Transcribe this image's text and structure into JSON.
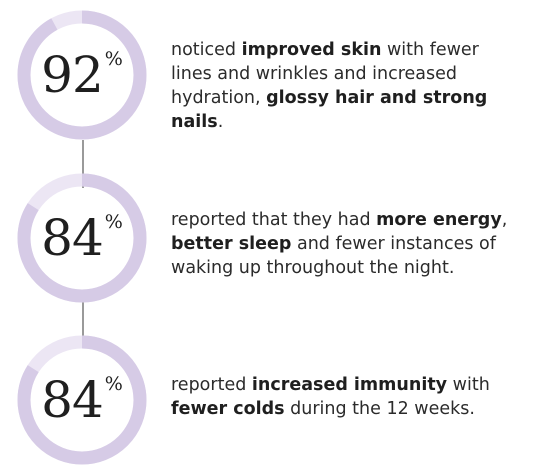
{
  "colors": {
    "ring": "#d6cbe6",
    "ring_fill": "#c2b3da",
    "connector": "#9a9a9a"
  },
  "stats": [
    {
      "value": "92",
      "percent_sign": "%",
      "ring_fill_fraction": 0.92,
      "segments": [
        {
          "text": "noticed ",
          "bold": false
        },
        {
          "text": "improved skin",
          "bold": true
        },
        {
          "text": " with fewer lines and wrinkles and increased hydration, ",
          "bold": false
        },
        {
          "text": "glossy hair and strong nails",
          "bold": true
        },
        {
          "text": ".",
          "bold": false
        }
      ]
    },
    {
      "value": "84",
      "percent_sign": "%",
      "ring_fill_fraction": 0.84,
      "segments": [
        {
          "text": "reported that they had ",
          "bold": false
        },
        {
          "text": "more energy",
          "bold": true
        },
        {
          "text": ", ",
          "bold": false
        },
        {
          "text": "better sleep",
          "bold": true
        },
        {
          "text": " and fewer instances of waking up throughout the night.",
          "bold": false
        }
      ]
    },
    {
      "value": "84",
      "percent_sign": "%",
      "ring_fill_fraction": 0.84,
      "segments": [
        {
          "text": "reported ",
          "bold": false
        },
        {
          "text": "increased immunity",
          "bold": true
        },
        {
          "text": " with ",
          "bold": false
        },
        {
          "text": "fewer colds",
          "bold": true
        },
        {
          "text": " during the 12 weeks.",
          "bold": false
        }
      ]
    }
  ]
}
